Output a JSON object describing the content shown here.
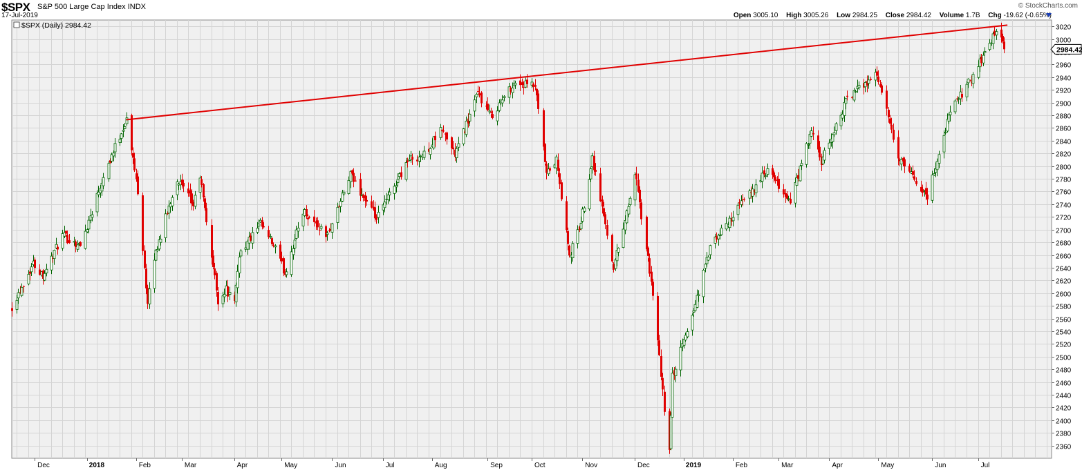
{
  "header": {
    "symbol": "$SPX",
    "description": "S&P 500 Large Cap Index",
    "exchange": "INDX",
    "date": "17-Jul-2019",
    "brand": "© StockCharts.com",
    "open_label": "Open",
    "open": "3005.10",
    "high_label": "High",
    "high": "3005.26",
    "low_label": "Low",
    "low": "2984.25",
    "close_label": "Close",
    "close": "2984.42",
    "volume_label": "Volume",
    "volume": "1.7B",
    "chg_label": "Chg",
    "chg": "-19.62 (-0.65%)"
  },
  "legend": {
    "text": "$SPX (Daily) 2984.42"
  },
  "price_tag": "2984.42",
  "colors": {
    "up": "#006400",
    "down": "#e00000",
    "trendline": "#e00000",
    "grid": "#d4d4d4",
    "plot_bg": "#f0f0f0"
  },
  "chart_data": {
    "type": "candlestick",
    "ylim": [
      2340,
      3030
    ],
    "y_ticks": [
      2360,
      2380,
      2400,
      2420,
      2440,
      2460,
      2480,
      2500,
      2520,
      2540,
      2560,
      2580,
      2600,
      2620,
      2640,
      2660,
      2680,
      2700,
      2720,
      2740,
      2760,
      2780,
      2800,
      2820,
      2840,
      2860,
      2880,
      2900,
      2920,
      2940,
      2960,
      2980,
      3000,
      3020
    ],
    "x_labels": [
      "Dec",
      "2018",
      "Feb",
      "Mar",
      "Apr",
      "May",
      "Jun",
      "Jul",
      "Aug",
      "Sep",
      "Oct",
      "Nov",
      "Dec",
      "2019",
      "Feb",
      "Mar",
      "Apr",
      "May",
      "Jun",
      "Jul"
    ],
    "x_label_dates": [
      "2017-12-01",
      "2018-01-02",
      "2018-02-01",
      "2018-03-01",
      "2018-04-02",
      "2018-05-01",
      "2018-06-01",
      "2018-07-02",
      "2018-08-01",
      "2018-09-04",
      "2018-10-01",
      "2018-11-01",
      "2018-12-03",
      "2019-01-02",
      "2019-02-01",
      "2019-03-01",
      "2019-04-01",
      "2019-05-01",
      "2019-06-03",
      "2019-07-01"
    ],
    "x_range": [
      "2017-11-17",
      "2019-08-15"
    ],
    "close_path": [
      [
        "2017-11-17",
        2579
      ],
      [
        "2017-11-30",
        2647
      ],
      [
        "2017-12-06",
        2629
      ],
      [
        "2017-12-18",
        2690
      ],
      [
        "2017-12-29",
        2674
      ],
      [
        "2018-01-12",
        2786
      ],
      [
        "2018-01-26",
        2873
      ],
      [
        "2018-02-02",
        2762
      ],
      [
        "2018-02-08",
        2581
      ],
      [
        "2018-02-12",
        2656
      ],
      [
        "2018-02-26",
        2780
      ],
      [
        "2018-03-08",
        2738
      ],
      [
        "2018-03-12",
        2784
      ],
      [
        "2018-03-23",
        2588
      ],
      [
        "2018-03-28",
        2606
      ],
      [
        "2018-04-02",
        2582
      ],
      [
        "2018-04-05",
        2662
      ],
      [
        "2018-04-18",
        2708
      ],
      [
        "2018-04-27",
        2670
      ],
      [
        "2018-05-03",
        2630
      ],
      [
        "2018-05-14",
        2730
      ],
      [
        "2018-05-29",
        2690
      ],
      [
        "2018-06-12",
        2786
      ],
      [
        "2018-06-28",
        2716
      ],
      [
        "2018-07-17",
        2809
      ],
      [
        "2018-07-27",
        2818
      ],
      [
        "2018-08-07",
        2858
      ],
      [
        "2018-08-15",
        2818
      ],
      [
        "2018-08-29",
        2914
      ],
      [
        "2018-09-06",
        2878
      ],
      [
        "2018-09-20",
        2931
      ],
      [
        "2018-10-03",
        2925
      ],
      [
        "2018-10-10",
        2786
      ],
      [
        "2018-10-16",
        2809
      ],
      [
        "2018-10-24",
        2656
      ],
      [
        "2018-10-31",
        2712
      ],
      [
        "2018-11-07",
        2814
      ],
      [
        "2018-11-20",
        2641
      ],
      [
        "2018-11-29",
        2738
      ],
      [
        "2018-12-03",
        2790
      ],
      [
        "2018-12-14",
        2600
      ],
      [
        "2018-12-21",
        2417
      ],
      [
        "2018-12-24",
        2351
      ],
      [
        "2018-12-26",
        2468
      ],
      [
        "2019-01-08",
        2574
      ],
      [
        "2019-01-18",
        2671
      ],
      [
        "2019-02-05",
        2737
      ],
      [
        "2019-02-22",
        2792
      ],
      [
        "2019-03-08",
        2743
      ],
      [
        "2019-03-21",
        2855
      ],
      [
        "2019-03-27",
        2805
      ],
      [
        "2019-04-12",
        2907
      ],
      [
        "2019-04-30",
        2946
      ],
      [
        "2019-05-13",
        2812
      ],
      [
        "2019-05-31",
        2752
      ],
      [
        "2019-06-14",
        2887
      ],
      [
        "2019-06-28",
        2942
      ],
      [
        "2019-07-12",
        3014
      ],
      [
        "2019-07-17",
        2984
      ]
    ],
    "trendline": [
      [
        "2018-01-26",
        2873
      ],
      [
        "2019-07-19",
        3022
      ]
    ]
  }
}
